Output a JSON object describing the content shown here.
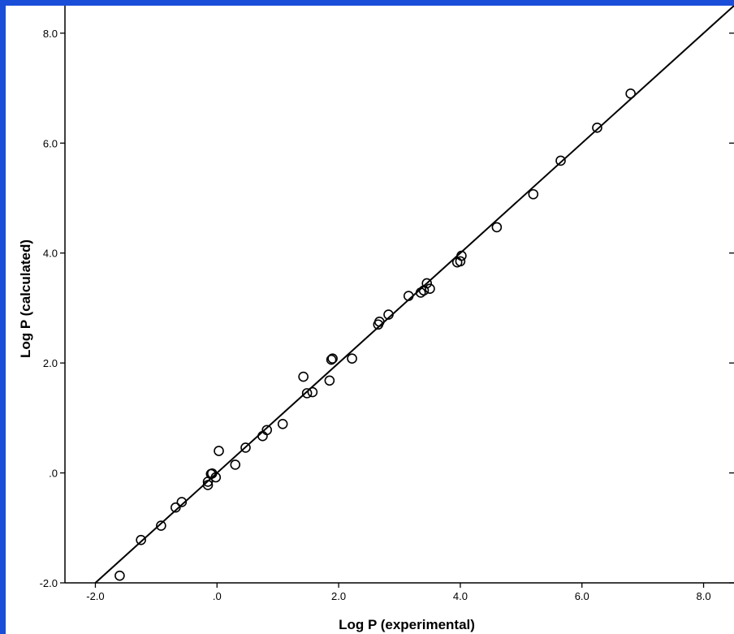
{
  "colors": {
    "border": "#1a4ed8",
    "background": "#ffffff",
    "ink": "#000000"
  },
  "chart_data": {
    "type": "scatter",
    "title": "",
    "xlabel": "Log P (experimental)",
    "ylabel": "Log P (calculated)",
    "xlim": [
      -2.5,
      8.5
    ],
    "ylim": [
      -2.0,
      8.5
    ],
    "x_ticks": [
      -2.0,
      0.0,
      2.0,
      4.0,
      6.0,
      8.0
    ],
    "x_tick_labels": [
      "-2.0",
      ".0",
      "2.0",
      "4.0",
      "6.0",
      "8.0"
    ],
    "y_ticks": [
      -2.0,
      0.0,
      2.0,
      4.0,
      6.0,
      8.0
    ],
    "y_tick_labels": [
      "-2.0",
      ".0",
      "2.0",
      "4.0",
      "6.0",
      "8.0"
    ],
    "grid": false,
    "marker": "open-circle",
    "fit_line": {
      "slope": 1.0,
      "intercept": 0.0,
      "x_range": [
        -2.0,
        8.5
      ]
    },
    "series": [
      {
        "points": [
          [
            -1.6,
            -1.87
          ],
          [
            -1.25,
            -1.22
          ],
          [
            -0.92,
            -0.96
          ],
          [
            -0.68,
            -0.63
          ],
          [
            -0.58,
            -0.53
          ],
          [
            -0.15,
            -0.16
          ],
          [
            -0.15,
            -0.22
          ],
          [
            -0.1,
            -0.02
          ],
          [
            -0.08,
            -0.01
          ],
          [
            -0.02,
            -0.08
          ],
          [
            0.03,
            0.4
          ],
          [
            0.3,
            0.15
          ],
          [
            0.47,
            0.46
          ],
          [
            0.75,
            0.67
          ],
          [
            0.82,
            0.78
          ],
          [
            1.08,
            0.89
          ],
          [
            1.42,
            1.75
          ],
          [
            1.48,
            1.45
          ],
          [
            1.57,
            1.47
          ],
          [
            1.85,
            1.68
          ],
          [
            1.88,
            2.06
          ],
          [
            1.9,
            2.08
          ],
          [
            2.22,
            2.08
          ],
          [
            2.65,
            2.7
          ],
          [
            2.67,
            2.75
          ],
          [
            2.82,
            2.88
          ],
          [
            3.15,
            3.22
          ],
          [
            3.35,
            3.28
          ],
          [
            3.4,
            3.32
          ],
          [
            3.45,
            3.45
          ],
          [
            3.5,
            3.35
          ],
          [
            3.95,
            3.83
          ],
          [
            4.0,
            3.85
          ],
          [
            4.02,
            3.95
          ],
          [
            4.6,
            4.47
          ],
          [
            5.2,
            5.07
          ],
          [
            5.65,
            5.68
          ],
          [
            6.25,
            6.28
          ],
          [
            6.8,
            6.9
          ]
        ]
      }
    ]
  }
}
